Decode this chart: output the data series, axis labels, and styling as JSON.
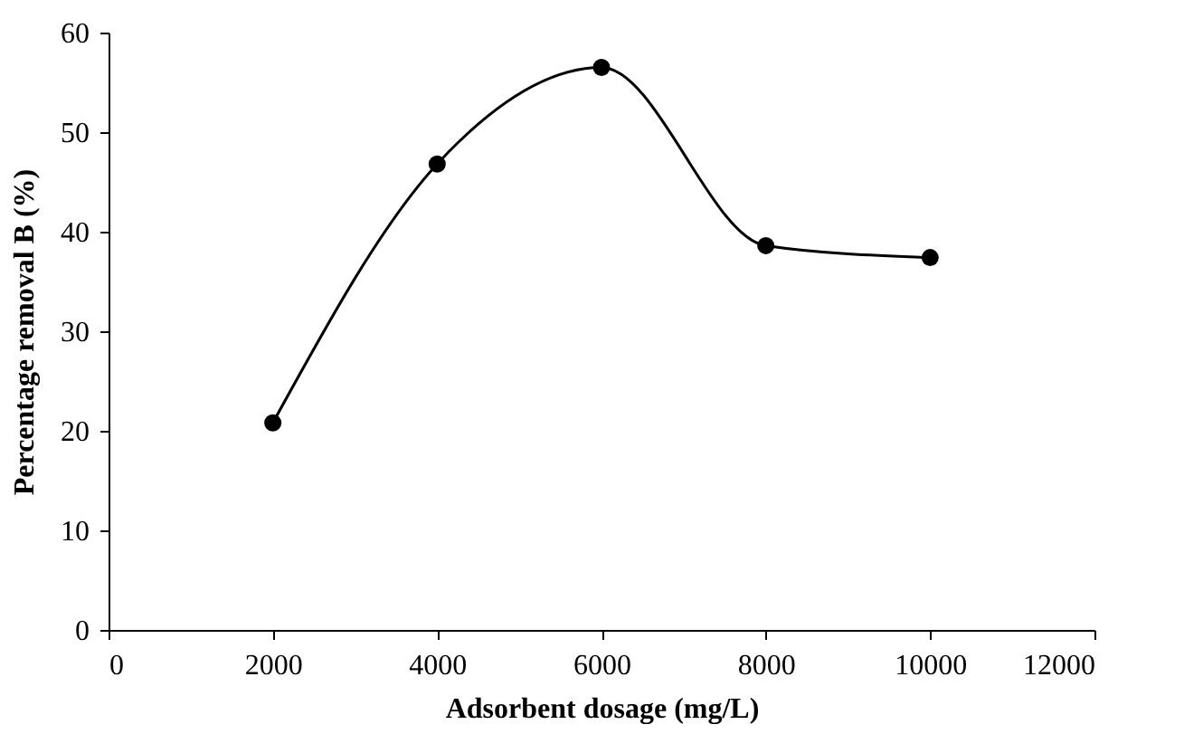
{
  "chart_data": {
    "type": "line",
    "xlabel": "Adsorbent dosage (mg/L)",
    "ylabel": "Percentage removal B (%)",
    "x": [
      2000,
      4000,
      6000,
      8000,
      10000
    ],
    "series": [
      {
        "color": "#000000",
        "values": [
          20.8,
          46.8,
          56.5,
          38.6,
          37.4
        ]
      }
    ],
    "xlim": [
      0,
      12000
    ],
    "xticks": [
      0,
      2000,
      4000,
      6000,
      8000,
      10000,
      12000
    ],
    "ylim": [
      0,
      60
    ],
    "yticks": [
      0,
      10,
      20,
      30,
      40,
      50,
      60
    ],
    "grid": false,
    "legend": false,
    "marker": "circle",
    "line_style": "solid"
  }
}
